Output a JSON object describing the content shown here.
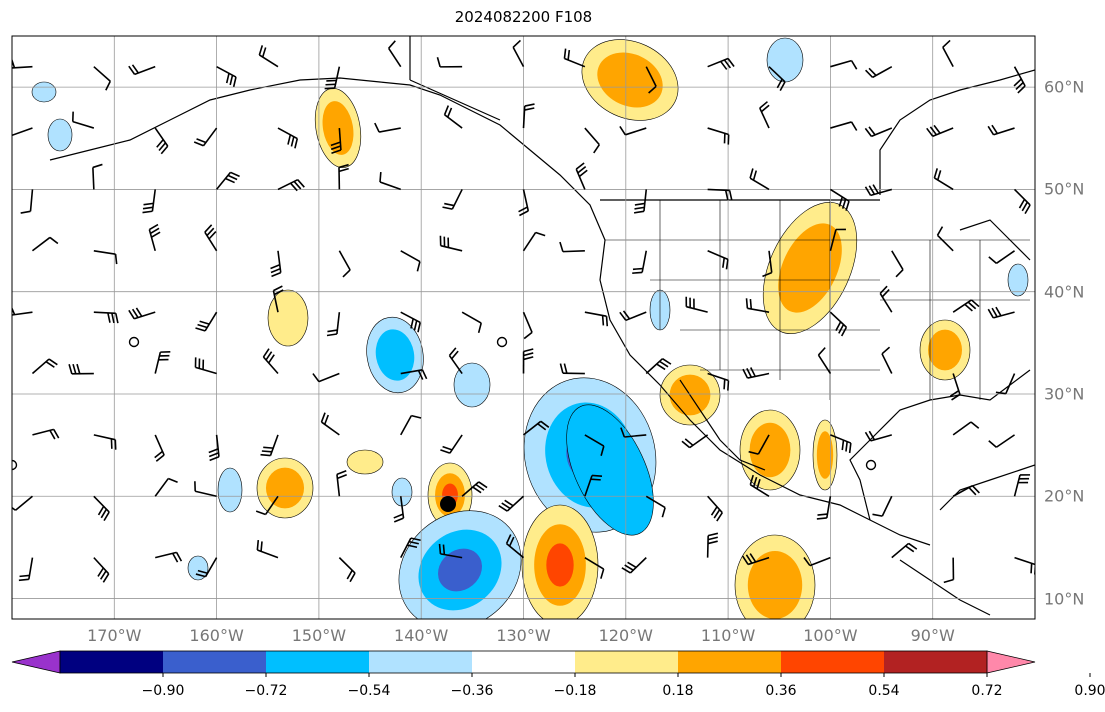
{
  "title": "2024082200 F108",
  "map": {
    "projection": "cylindrical",
    "lon_range": [
      -180,
      -80
    ],
    "lat_range": [
      8,
      65
    ],
    "grid": true,
    "lon_labels": [
      {
        "lon": -170,
        "text": "170°W"
      },
      {
        "lon": -160,
        "text": "160°W"
      },
      {
        "lon": -150,
        "text": "150°W"
      },
      {
        "lon": -140,
        "text": "140°W"
      },
      {
        "lon": -130,
        "text": "130°W"
      },
      {
        "lon": -120,
        "text": "120°W"
      },
      {
        "lon": -110,
        "text": "110°W"
      },
      {
        "lon": -100,
        "text": "100°W"
      },
      {
        "lon": -90,
        "text": "90°W"
      }
    ],
    "lat_labels": [
      {
        "lat": 60,
        "text": "60°N"
      },
      {
        "lat": 50,
        "text": "50°N"
      },
      {
        "lat": 40,
        "text": "40°N"
      },
      {
        "lat": 30,
        "text": "30°N"
      },
      {
        "lat": 20,
        "text": "20°N"
      },
      {
        "lat": 10,
        "text": "10°N"
      }
    ],
    "storm_marker": {
      "lon": -136,
      "lat": 19
    }
  },
  "colorbar": {
    "colors": [
      "#9932cc",
      "#000080",
      "#3a5fcd",
      "#00bfff",
      "#b0e2ff",
      "#ffffff",
      "#ffec8b",
      "#ffa500",
      "#ff4500",
      "#b22222",
      "#ff88aa"
    ],
    "tick_labels": [
      "−0.90",
      "−0.72",
      "−0.54",
      "−0.36",
      "−0.18",
      "0.18",
      "0.36",
      "0.54",
      "0.72",
      "0.90"
    ]
  }
}
